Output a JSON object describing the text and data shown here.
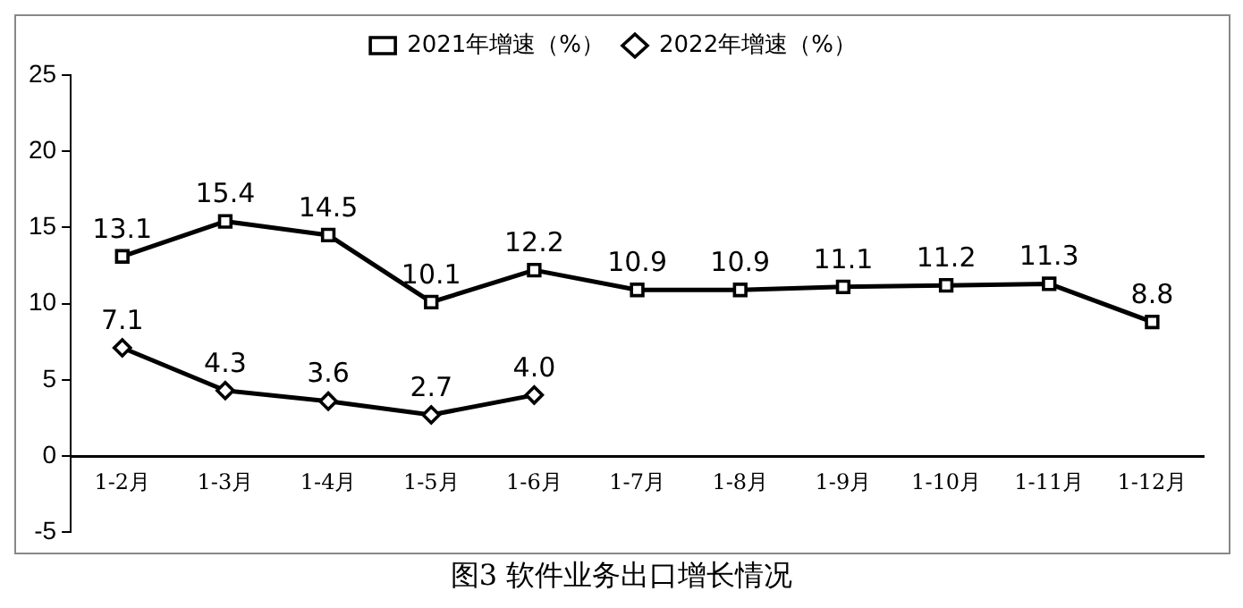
{
  "chart_data": {
    "type": "line",
    "title": "图3 软件业务出口增长情况",
    "categories": [
      "1-2月",
      "1-3月",
      "1-4月",
      "1-5月",
      "1-6月",
      "1-7月",
      "1-8月",
      "1-9月",
      "1-10月",
      "1-11月",
      "1-12月"
    ],
    "series": [
      {
        "name": "2021年增速（%）",
        "color": "#000000",
        "marker": "square",
        "values": [
          13.1,
          15.4,
          14.5,
          10.1,
          12.2,
          10.9,
          10.9,
          11.1,
          11.2,
          11.3,
          8.8
        ],
        "value_labels": [
          "13.1",
          "15.4",
          "14.5",
          "10.1",
          "12.2",
          "10.9",
          "10.9",
          "11.1",
          "11.2",
          "11.3",
          "8.8"
        ]
      },
      {
        "name": "2022年增速（%）",
        "color": "#000000",
        "marker": "diamond",
        "values": [
          7.1,
          4.3,
          3.6,
          2.7,
          4.0,
          null,
          null,
          null,
          null,
          null,
          null
        ],
        "value_labels": [
          "7.1",
          "4.3",
          "3.6",
          "2.7",
          "4.0",
          null,
          null,
          null,
          null,
          null,
          null
        ]
      }
    ],
    "ylim": [
      -5,
      25
    ],
    "yticks": [
      -5,
      0,
      5,
      10,
      15,
      20,
      25
    ],
    "grid": false,
    "legend": "top"
  }
}
